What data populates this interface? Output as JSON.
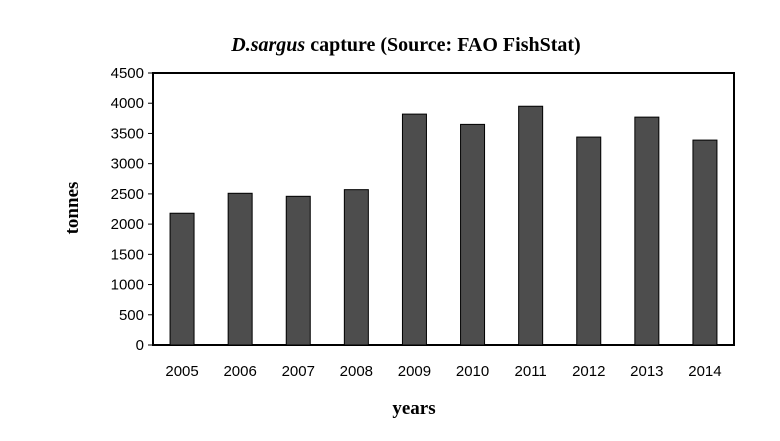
{
  "chart_data": {
    "type": "bar",
    "title": {
      "species": "D.sargus",
      "rest": " capture (Source: FAO FishStat)"
    },
    "xlabel": "years",
    "ylabel": "tonnes",
    "categories": [
      "2005",
      "2006",
      "2007",
      "2008",
      "2009",
      "2010",
      "2011",
      "2012",
      "2013",
      "2014"
    ],
    "values": [
      2180,
      2510,
      2460,
      2570,
      3820,
      3650,
      3950,
      3440,
      3770,
      3390
    ],
    "ylim": [
      0,
      4500
    ],
    "yticks": [
      "0",
      "500",
      "1000",
      "1500",
      "2000",
      "2500",
      "3000",
      "3500",
      "4000",
      "4500"
    ],
    "grid": false,
    "legend": "none",
    "bar_color": "#4d4d4d"
  }
}
